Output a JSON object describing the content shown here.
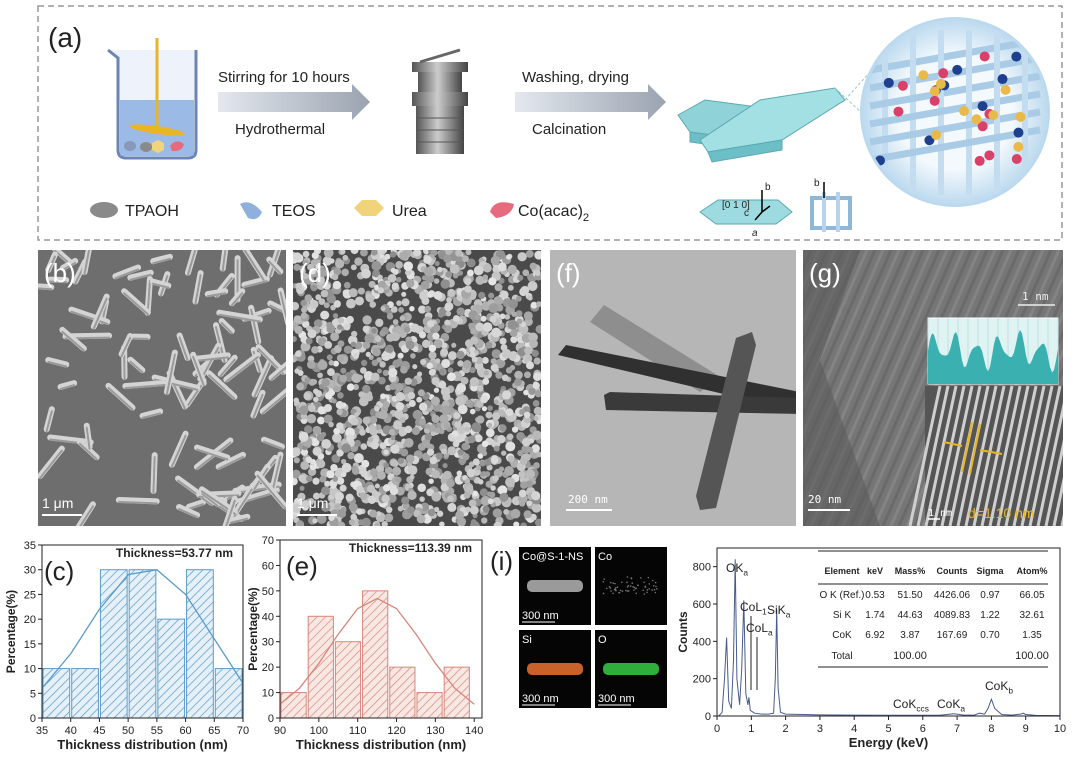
{
  "figure": {
    "panel_a": {
      "label": "(a)",
      "step1_top": "Stirring for 10 hours",
      "step1_bottom": "Hydrothermal",
      "step2_top": "Washing, drying",
      "step2_bottom": "Calcination",
      "legend": [
        {
          "text": "TPAOH"
        },
        {
          "text": "TEOS"
        },
        {
          "text": "Urea"
        },
        {
          "text": "Co(acac)",
          "sub": "2"
        }
      ],
      "crystal_labels": [
        "[0 1 0]",
        "b",
        "c",
        "a",
        "b"
      ]
    },
    "panel_b": {
      "label": "(b)",
      "scale": "1 μm"
    },
    "panel_d": {
      "label": "(d)",
      "scale": "1 μm"
    },
    "panel_f": {
      "label": "(f)",
      "scale": "200 nm"
    },
    "panel_g": {
      "label": "(g)",
      "scale": "20 nm",
      "inset_scale": "1 nm",
      "lattice_scale": "1 nm",
      "spacing": "d=1.10 nm"
    },
    "panel_i": {
      "label": "(i)",
      "maps": [
        {
          "name": "Co@S-1-NS",
          "scale": "300 nm"
        },
        {
          "name": "Co"
        },
        {
          "name": "Si",
          "scale": "300 nm"
        },
        {
          "name": "O",
          "scale": "300 nm"
        }
      ],
      "table": {
        "columns": [
          "Element",
          "keV",
          "Mass%",
          "Counts",
          "Sigma",
          "Atom%"
        ],
        "rows": [
          [
            "O K (Ref.)",
            "0.53",
            "51.50",
            "4426.06",
            "0.97",
            "66.05"
          ],
          [
            "Si K",
            "1.74",
            "44.63",
            "4089.83",
            "1.22",
            "32.61"
          ],
          [
            "CoK",
            "6.92",
            "3.87",
            "167.69",
            "0.70",
            "1.35"
          ]
        ],
        "total": {
          "element": "Total",
          "mass": "100.00",
          "atom": "100.00"
        }
      }
    }
  },
  "chart_data": [
    {
      "type": "histogram",
      "panel_label": "(c)",
      "title": "Thickness=53.77 nm",
      "xlabel": "Thickness distribution (nm)",
      "ylabel": "Percentage(%)",
      "bins": [
        35,
        40,
        45,
        50,
        55,
        60,
        65,
        70
      ],
      "values": [
        10,
        10,
        30,
        30,
        20,
        30,
        10
      ],
      "color": "#5b9bc8",
      "fit": {
        "x": [
          35,
          40,
          45,
          50,
          55,
          60,
          65,
          70
        ],
        "values": [
          6,
          13,
          22,
          29,
          30,
          25,
          16,
          7
        ]
      },
      "xlim": [
        35,
        70
      ],
      "ylim": [
        0,
        35
      ],
      "xticks": [
        35,
        40,
        45,
        50,
        55,
        60,
        65,
        70
      ],
      "yticks": [
        0,
        5,
        10,
        15,
        20,
        25,
        30,
        35
      ]
    },
    {
      "type": "histogram",
      "panel_label": "(e)",
      "title": "Thickness=113.39 nm",
      "xlabel": "Thickness distribution (nm)",
      "ylabel": "Percentage(%)",
      "bins": [
        90,
        97,
        104,
        111,
        118,
        125,
        132,
        139
      ],
      "values": [
        10,
        40,
        30,
        50,
        20,
        10,
        20
      ],
      "color": "#d9867a",
      "fit": {
        "x": [
          90,
          95,
          100,
          105,
          110,
          115,
          120,
          125,
          130,
          135,
          140
        ],
        "values": [
          5.4,
          11.7,
          21.5,
          33,
          43,
          47,
          43,
          33,
          21.5,
          11.7,
          5.4
        ]
      },
      "xlim": [
        90,
        142
      ],
      "ylim": [
        0,
        70
      ],
      "xticks": [
        90,
        100,
        110,
        120,
        130,
        140
      ],
      "yticks": [
        0,
        10,
        20,
        30,
        40,
        50,
        60,
        70
      ]
    },
    {
      "type": "line",
      "xlabel": "Energy (keV)",
      "ylabel": "Counts",
      "color": "#4a5c8c",
      "x": [
        0.05,
        0.15,
        0.22,
        0.28,
        0.34,
        0.42,
        0.48,
        0.53,
        0.58,
        0.66,
        0.72,
        0.78,
        0.84,
        0.9,
        0.93,
        0.97,
        1.1,
        1.3,
        1.5,
        1.65,
        1.7,
        1.74,
        1.78,
        1.85,
        2.0,
        2.5,
        3,
        4,
        5,
        6,
        6.5,
        6.9,
        7.2,
        7.5,
        7.65,
        7.8,
        7.9,
        8.0,
        8.1,
        8.3,
        8.6,
        8.85,
        8.93,
        9.0,
        9.3,
        10
      ],
      "values": [
        0,
        20,
        200,
        420,
        80,
        40,
        300,
        840,
        200,
        60,
        250,
        620,
        120,
        60,
        100,
        30,
        15,
        10,
        10,
        15,
        200,
        570,
        150,
        20,
        10,
        8,
        6,
        5,
        4,
        4,
        4,
        12,
        5,
        5,
        15,
        10,
        40,
        90,
        40,
        8,
        5,
        10,
        15,
        8,
        3,
        2
      ],
      "annotations": [
        {
          "text": "OK",
          "sub": "a"
        },
        {
          "text": "CoL",
          "sub": "1"
        },
        {
          "text": "CoL",
          "sub": "a"
        },
        {
          "text": "SiK",
          "sub": "a"
        },
        {
          "text": "CoK",
          "sub": "ccs"
        },
        {
          "text": "CoK",
          "sub": "a"
        },
        {
          "text": "CoK",
          "sub": "b"
        }
      ],
      "xlim": [
        0,
        10
      ],
      "ylim": [
        0,
        900
      ],
      "xticks": [
        0,
        1,
        2,
        3,
        4,
        5,
        6,
        7,
        8,
        9,
        10
      ],
      "yticks": [
        0,
        200,
        400,
        600,
        800
      ]
    }
  ]
}
